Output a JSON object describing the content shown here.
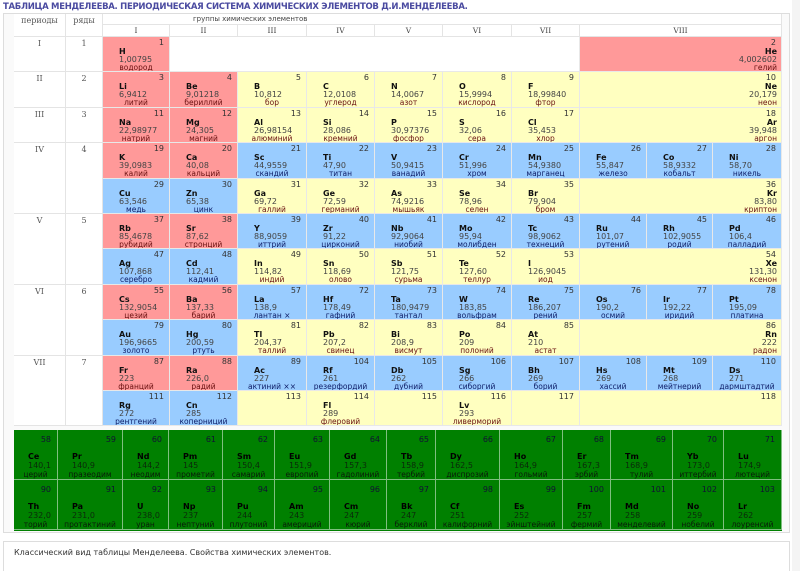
{
  "title": "ТАБЛИЦА МЕНДЕЛЕЕВА. ПЕРИОДИЧЕСКАЯ СИСТЕМА ХИМИЧЕСКИХ ЭЛЕМЕНТОВ Д.И.МЕНДЕЛЕЕВА.",
  "header": {
    "periods": "периоды",
    "rows": "ряды",
    "groups_title": "группы химических элементов",
    "groups": [
      "I",
      "II",
      "III",
      "IV",
      "V",
      "VI",
      "VII",
      "VIII"
    ]
  },
  "periods": [
    {
      "label": "I",
      "rows": [
        "1"
      ]
    },
    {
      "label": "II",
      "rows": [
        "2"
      ]
    },
    {
      "label": "III",
      "rows": [
        "3"
      ]
    },
    {
      "label": "IV",
      "rows": [
        "4"
      ]
    },
    {
      "label": "V",
      "rows": [
        "5"
      ]
    },
    {
      "label": "VI",
      "rows": [
        "6"
      ]
    },
    {
      "label": "VII",
      "rows": [
        "7"
      ]
    }
  ],
  "colors": {
    "s": "#ff9999",
    "p": "#ffffc0",
    "d": "#99ccff",
    "f": "#008000"
  },
  "rows": [
    [
      {
        "n": "1",
        "s": "H",
        "m": "1,00795",
        "name": "водород",
        "c": "s"
      },
      {
        "blank": true
      },
      {
        "n": "2",
        "s": "He",
        "m": "4,002602",
        "name": "гелий",
        "c": "s",
        "noble": true
      }
    ],
    [
      {
        "n": "3",
        "s": "Li",
        "m": "6,9412",
        "name": "литий",
        "c": "s"
      },
      {
        "n": "4",
        "s": "Be",
        "m": "9,01218",
        "name": "бериллий",
        "c": "s"
      },
      {
        "n": "5",
        "s": "B",
        "m": "10,812",
        "name": "бор",
        "c": "p"
      },
      {
        "n": "6",
        "s": "C",
        "m": "12,0108",
        "name": "углерод",
        "c": "p"
      },
      {
        "n": "7",
        "s": "N",
        "m": "14,0067",
        "name": "азот",
        "c": "p"
      },
      {
        "n": "8",
        "s": "O",
        "m": "15,9994",
        "name": "кислород",
        "c": "p"
      },
      {
        "n": "9",
        "s": "F",
        "m": "18,99840",
        "name": "фтор",
        "c": "p"
      },
      {
        "n": "10",
        "s": "Ne",
        "m": "20,179",
        "name": "неон",
        "c": "p",
        "noble": true
      }
    ],
    [
      {
        "n": "11",
        "s": "Na",
        "m": "22,98977",
        "name": "натрий",
        "c": "s"
      },
      {
        "n": "12",
        "s": "Mg",
        "m": "24,305",
        "name": "магний",
        "c": "s"
      },
      {
        "n": "13",
        "s": "Al",
        "m": "26,98154",
        "name": "алюминий",
        "c": "p"
      },
      {
        "n": "14",
        "s": "Si",
        "m": "28,086",
        "name": "кремний",
        "c": "p"
      },
      {
        "n": "15",
        "s": "P",
        "m": "30,97376",
        "name": "фосфор",
        "c": "p"
      },
      {
        "n": "16",
        "s": "S",
        "m": "32,06",
        "name": "сера",
        "c": "p"
      },
      {
        "n": "17",
        "s": "Cl",
        "m": "35,453",
        "name": "хлор",
        "c": "p"
      },
      {
        "n": "18",
        "s": "Ar",
        "m": "39,948",
        "name": "аргон",
        "c": "p",
        "noble": true
      }
    ],
    [
      {
        "n": "19",
        "s": "K",
        "m": "39,0983",
        "name": "калий",
        "c": "s"
      },
      {
        "n": "20",
        "s": "Ca",
        "m": "40,08",
        "name": "кальций",
        "c": "s"
      },
      {
        "n": "21",
        "s": "Sc",
        "m": "44,9559",
        "name": "скандий",
        "c": "d"
      },
      {
        "n": "22",
        "s": "Ti",
        "m": "47,90",
        "name": "титан",
        "c": "d"
      },
      {
        "n": "23",
        "s": "V",
        "m": "50,9415",
        "name": "ванадий",
        "c": "d"
      },
      {
        "n": "24",
        "s": "Cr",
        "m": "51,996",
        "name": "хром",
        "c": "d"
      },
      {
        "n": "25",
        "s": "Mn",
        "m": "54,9380",
        "name": "марганец",
        "c": "d"
      },
      {
        "n": "26",
        "s": "Fe",
        "m": "55,847",
        "name": "железо",
        "c": "d"
      },
      {
        "n": "27",
        "s": "Co",
        "m": "58,9332",
        "name": "кобальт",
        "c": "d"
      },
      {
        "n": "28",
        "s": "Ni",
        "m": "58,70",
        "name": "никель",
        "c": "d"
      }
    ],
    [
      {
        "n": "29",
        "s": "Cu",
        "m": "63,546",
        "name": "медь",
        "c": "d"
      },
      {
        "n": "30",
        "s": "Zn",
        "m": "65,38",
        "name": "цинк",
        "c": "d"
      },
      {
        "n": "31",
        "s": "Ga",
        "m": "69,72",
        "name": "галлий",
        "c": "p"
      },
      {
        "n": "32",
        "s": "Ge",
        "m": "72,59",
        "name": "германий",
        "c": "p"
      },
      {
        "n": "33",
        "s": "As",
        "m": "74,9216",
        "name": "мышьяк",
        "c": "p"
      },
      {
        "n": "34",
        "s": "Se",
        "m": "78,96",
        "name": "селен",
        "c": "p"
      },
      {
        "n": "35",
        "s": "Br",
        "m": "79,904",
        "name": "бром",
        "c": "p"
      },
      {
        "n": "36",
        "s": "Kr",
        "m": "83,80",
        "name": "криптон",
        "c": "p",
        "noble": true
      }
    ],
    [
      {
        "n": "37",
        "s": "Rb",
        "m": "85,4678",
        "name": "рубидий",
        "c": "s"
      },
      {
        "n": "38",
        "s": "Sr",
        "m": "87,62",
        "name": "стронций",
        "c": "s"
      },
      {
        "n": "39",
        "s": "Y",
        "m": "88,9059",
        "name": "иттрий",
        "c": "d"
      },
      {
        "n": "40",
        "s": "Zr",
        "m": "91,22",
        "name": "цирконий",
        "c": "d"
      },
      {
        "n": "41",
        "s": "Nb",
        "m": "92,9064",
        "name": "ниобий",
        "c": "d"
      },
      {
        "n": "42",
        "s": "Mo",
        "m": "95,94",
        "name": "молибден",
        "c": "d"
      },
      {
        "n": "43",
        "s": "Tc",
        "m": "98,9062",
        "name": "технеций",
        "c": "d"
      },
      {
        "n": "44",
        "s": "Ru",
        "m": "101,07",
        "name": "рутений",
        "c": "d"
      },
      {
        "n": "45",
        "s": "Rh",
        "m": "102,9055",
        "name": "родий",
        "c": "d"
      },
      {
        "n": "46",
        "s": "Pd",
        "m": "106,4",
        "name": "палладий",
        "c": "d"
      }
    ],
    [
      {
        "n": "47",
        "s": "Ag",
        "m": "107,868",
        "name": "серебро",
        "c": "d"
      },
      {
        "n": "48",
        "s": "Cd",
        "m": "112,41",
        "name": "кадмий",
        "c": "d"
      },
      {
        "n": "49",
        "s": "In",
        "m": "114,82",
        "name": "индий",
        "c": "p"
      },
      {
        "n": "50",
        "s": "Sn",
        "m": "118,69",
        "name": "олово",
        "c": "p"
      },
      {
        "n": "51",
        "s": "Sb",
        "m": "121,75",
        "name": "сурьма",
        "c": "p"
      },
      {
        "n": "52",
        "s": "Te",
        "m": "127,60",
        "name": "теллур",
        "c": "p"
      },
      {
        "n": "53",
        "s": "I",
        "m": "126,9045",
        "name": "иод",
        "c": "p"
      },
      {
        "n": "54",
        "s": "Xe",
        "m": "131,30",
        "name": "ксенон",
        "c": "p",
        "noble": true
      }
    ],
    [
      {
        "n": "55",
        "s": "Cs",
        "m": "132,9054",
        "name": "цезий",
        "c": "s"
      },
      {
        "n": "56",
        "s": "Ba",
        "m": "137,33",
        "name": "барий",
        "c": "s"
      },
      {
        "n": "57",
        "s": "La",
        "m": "138,9",
        "name": "лантан ×",
        "c": "d"
      },
      {
        "n": "72",
        "s": "Hf",
        "m": "178,49",
        "name": "гафний",
        "c": "d"
      },
      {
        "n": "73",
        "s": "Ta",
        "m": "180,9479",
        "name": "тантал",
        "c": "d"
      },
      {
        "n": "74",
        "s": "W",
        "m": "183,85",
        "name": "вольфрам",
        "c": "d"
      },
      {
        "n": "75",
        "s": "Re",
        "m": "186,207",
        "name": "рений",
        "c": "d"
      },
      {
        "n": "76",
        "s": "Os",
        "m": "190,2",
        "name": "осмий",
        "c": "d"
      },
      {
        "n": "77",
        "s": "Ir",
        "m": "192,22",
        "name": "иридий",
        "c": "d"
      },
      {
        "n": "78",
        "s": "Pt",
        "m": "195,09",
        "name": "платина",
        "c": "d"
      }
    ],
    [
      {
        "n": "79",
        "s": "Au",
        "m": "196,9665",
        "name": "золото",
        "c": "d"
      },
      {
        "n": "80",
        "s": "Hg",
        "m": "200,59",
        "name": "ртуть",
        "c": "d"
      },
      {
        "n": "81",
        "s": "Tl",
        "m": "204,37",
        "name": "таллий",
        "c": "p"
      },
      {
        "n": "82",
        "s": "Pb",
        "m": "207,2",
        "name": "свинец",
        "c": "p"
      },
      {
        "n": "83",
        "s": "Bi",
        "m": "208,9",
        "name": "висмут",
        "c": "p"
      },
      {
        "n": "84",
        "s": "Po",
        "m": "209",
        "name": "полоний",
        "c": "p"
      },
      {
        "n": "85",
        "s": "At",
        "m": "210",
        "name": "астат",
        "c": "p"
      },
      {
        "n": "86",
        "s": "Rn",
        "m": "222",
        "name": "радон",
        "c": "p",
        "noble": true
      }
    ],
    [
      {
        "n": "87",
        "s": "Fr",
        "m": "223",
        "name": "франций",
        "c": "s"
      },
      {
        "n": "88",
        "s": "Ra",
        "m": "226,0",
        "name": "радий",
        "c": "s"
      },
      {
        "n": "89",
        "s": "Ac",
        "m": "227",
        "name": "актиний ××",
        "c": "d"
      },
      {
        "n": "104",
        "s": "Rf",
        "m": "261",
        "name": "резерфордий",
        "c": "d"
      },
      {
        "n": "105",
        "s": "Db",
        "m": "262",
        "name": "дубний",
        "c": "d"
      },
      {
        "n": "106",
        "s": "Sg",
        "m": "266",
        "name": "сиборгий",
        "c": "d"
      },
      {
        "n": "107",
        "s": "Bh",
        "m": "269",
        "name": "борий",
        "c": "d"
      },
      {
        "n": "108",
        "s": "Hs",
        "m": "269",
        "name": "хассий",
        "c": "d"
      },
      {
        "n": "109",
        "s": "Mt",
        "m": "268",
        "name": "мейтнерий",
        "c": "d"
      },
      {
        "n": "110",
        "s": "Ds",
        "m": "271",
        "name": "дармштадтий",
        "c": "d"
      }
    ],
    [
      {
        "n": "111",
        "s": "Rg",
        "m": "272",
        "name": "рентгений",
        "c": "d"
      },
      {
        "n": "112",
        "s": "Cn",
        "m": "285",
        "name": "коперниций",
        "c": "d"
      },
      {
        "n": "113",
        "c": "p"
      },
      {
        "n": "114",
        "s": "Fl",
        "m": "289",
        "name": "флеровий",
        "c": "p"
      },
      {
        "n": "115",
        "c": "p"
      },
      {
        "n": "116",
        "s": "Lv",
        "m": "293",
        "name": "ливерморий",
        "c": "p"
      },
      {
        "n": "117",
        "c": "p"
      },
      {
        "n": "118",
        "c": "p",
        "noble": true
      }
    ]
  ],
  "lanthanides": [
    {
      "n": "58",
      "s": "Ce",
      "m": "140,1",
      "name": "церий"
    },
    {
      "n": "59",
      "s": "Pr",
      "m": "140,9",
      "name": "празеодим"
    },
    {
      "n": "60",
      "s": "Nd",
      "m": "144,2",
      "name": "неодим"
    },
    {
      "n": "61",
      "s": "Pm",
      "m": "145",
      "name": "прометий"
    },
    {
      "n": "62",
      "s": "Sm",
      "m": "150,4",
      "name": "самарий"
    },
    {
      "n": "63",
      "s": "Eu",
      "m": "151,9",
      "name": "европий"
    },
    {
      "n": "64",
      "s": "Gd",
      "m": "157,3",
      "name": "гадолиний"
    },
    {
      "n": "65",
      "s": "Tb",
      "m": "158,9",
      "name": "тербий"
    },
    {
      "n": "66",
      "s": "Dy",
      "m": "162,5",
      "name": "диспрозий"
    },
    {
      "n": "67",
      "s": "Ho",
      "m": "164,9",
      "name": "гольмий"
    },
    {
      "n": "68",
      "s": "Er",
      "m": "167,3",
      "name": "эрбий"
    },
    {
      "n": "69",
      "s": "Tm",
      "m": "168,9",
      "name": "тулий"
    },
    {
      "n": "70",
      "s": "Yb",
      "m": "173,0",
      "name": "иттербий"
    },
    {
      "n": "71",
      "s": "Lu",
      "m": "174,9",
      "name": "лютеций"
    }
  ],
  "actinides": [
    {
      "n": "90",
      "s": "Th",
      "m": "232,0",
      "name": "торий"
    },
    {
      "n": "91",
      "s": "Pa",
      "m": "231,0",
      "name": "протактиний"
    },
    {
      "n": "92",
      "s": "U",
      "m": "238,0",
      "name": "уран"
    },
    {
      "n": "93",
      "s": "Np",
      "m": "237",
      "name": "нептуний"
    },
    {
      "n": "94",
      "s": "Pu",
      "m": "244",
      "name": "плутоний"
    },
    {
      "n": "95",
      "s": "Am",
      "m": "243",
      "name": "америций"
    },
    {
      "n": "96",
      "s": "Cm",
      "m": "247",
      "name": "кюрий"
    },
    {
      "n": "97",
      "s": "Bk",
      "m": "247",
      "name": "берклий"
    },
    {
      "n": "98",
      "s": "Cf",
      "m": "251",
      "name": "калифорний"
    },
    {
      "n": "99",
      "s": "Es",
      "m": "252",
      "name": "эйнштейний"
    },
    {
      "n": "100",
      "s": "Fm",
      "m": "257",
      "name": "фермий"
    },
    {
      "n": "101",
      "s": "Md",
      "m": "258",
      "name": "менделевий"
    },
    {
      "n": "102",
      "s": "No",
      "m": "259",
      "name": "нобелий"
    },
    {
      "n": "103",
      "s": "Lr",
      "m": "262",
      "name": "лоуренсий"
    }
  ],
  "footer": "Классический вид таблицы Менделеева. Свойства химических элементов."
}
